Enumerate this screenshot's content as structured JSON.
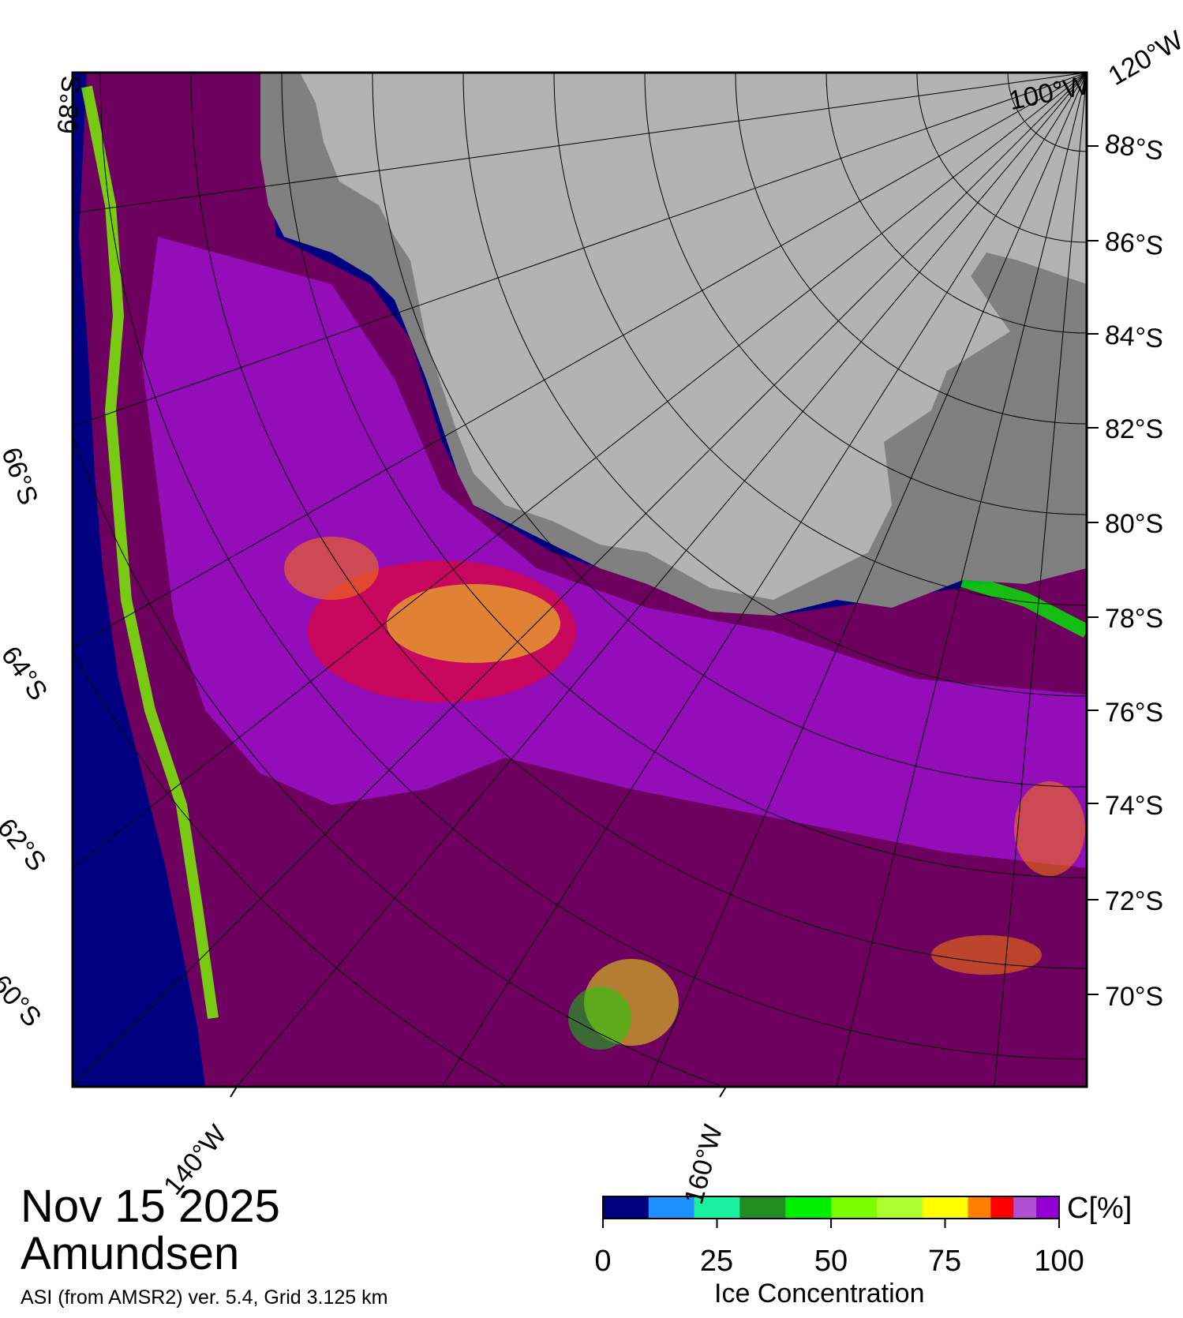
{
  "map": {
    "date": "Nov 15 2025",
    "region": "Amundsen",
    "product": "ASI (from AMSR2) ver. 5.4,  Grid 3.125 km",
    "lat_labels_right": [
      "88°S",
      "86°S",
      "84°S",
      "82°S",
      "80°S",
      "78°S",
      "76°S",
      "74°S",
      "72°S",
      "70°S"
    ],
    "lat_labels_left": [
      "68°S",
      "66°S",
      "64°S",
      "62°S",
      "60°S"
    ],
    "lon_labels": [
      "140°W",
      "160°W",
      "100°W",
      "120°W"
    ],
    "colors": {
      "open_water": "#000080",
      "land": "#b3b3b3",
      "ice_shelf": "#808080",
      "sea_ice_full": "#6e0060",
      "frame": "#000000"
    }
  },
  "colorbar": {
    "title": "Ice Concentration",
    "unit": "C[%]",
    "ticks": [
      "0",
      "25",
      "50",
      "75",
      "100"
    ],
    "colors": [
      "#000080",
      "#1e90ff",
      "#19f0a0",
      "#228b22",
      "#00ee00",
      "#7cfc00",
      "#adff2f",
      "#ffff00",
      "#ff7f00",
      "#ff0000",
      "#b050d0",
      "#9400d3"
    ]
  }
}
